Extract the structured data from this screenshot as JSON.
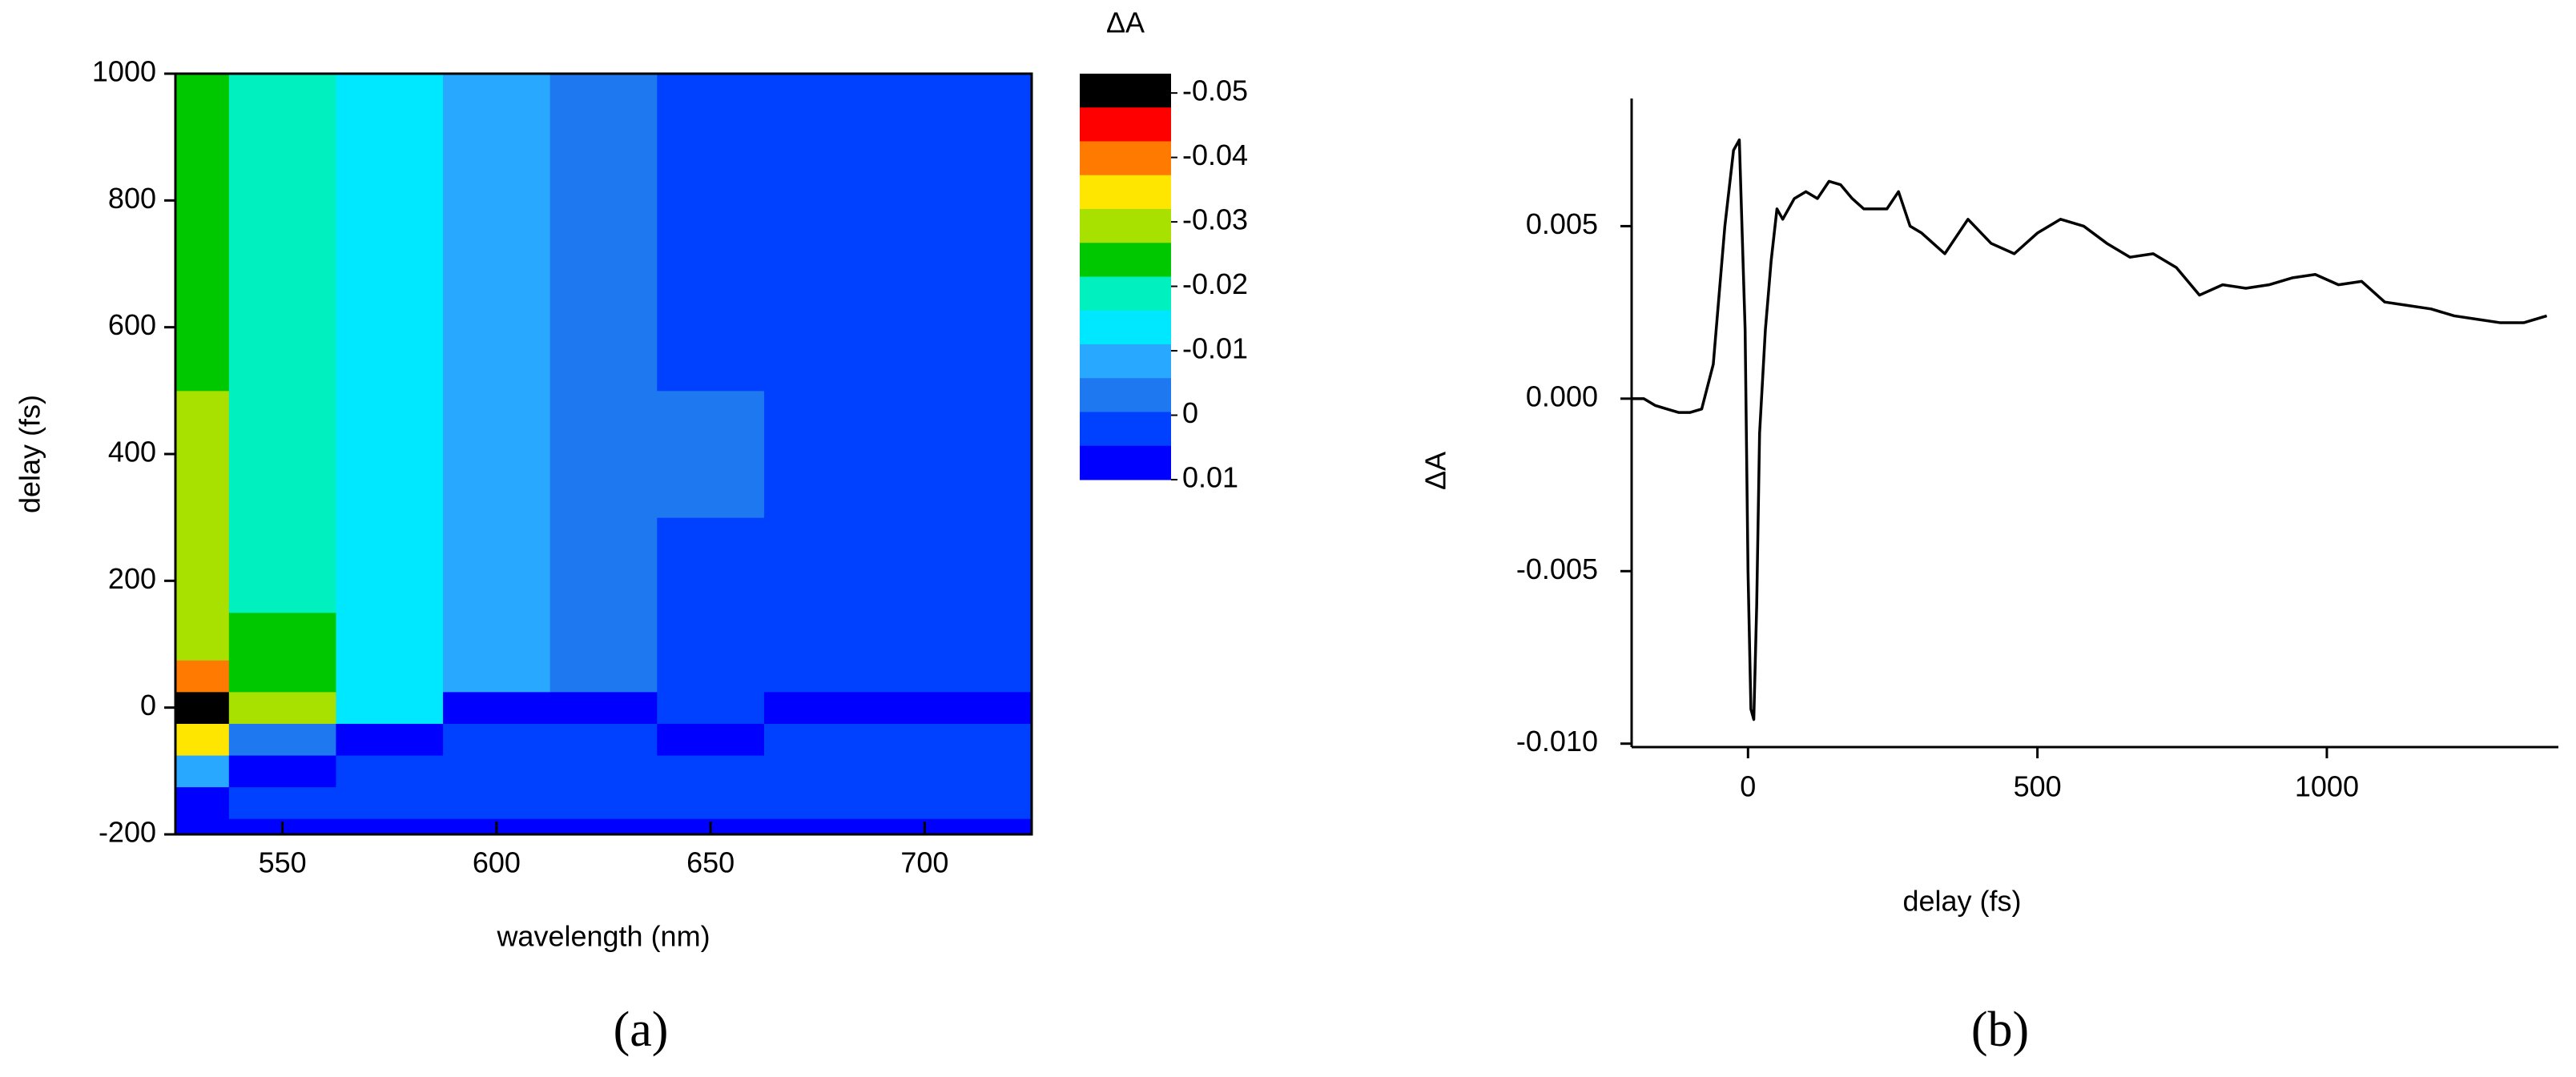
{
  "chart_data": [
    {
      "type": "heatmap",
      "caption": "(a)",
      "x_label": "wavelength (nm)",
      "y_label": "delay (fs)",
      "x": [
        525,
        550,
        575,
        600,
        625,
        650,
        675,
        700,
        725
      ],
      "y": [
        -200,
        -150,
        -100,
        -50,
        0,
        50,
        100,
        200,
        400,
        600,
        800,
        1000
      ],
      "z": [
        [
          0.008,
          0.006,
          0.005,
          0.005,
          0.005,
          0.005,
          0.005,
          0.005,
          0.005
        ],
        [
          0.006,
          0.004,
          0.003,
          0.004,
          0.004,
          0.004,
          0.004,
          0.004,
          0.004
        ],
        [
          -0.01,
          0.005,
          0.002,
          0.003,
          0.003,
          0.004,
          0.003,
          0.003,
          0.004
        ],
        [
          -0.035,
          -0.005,
          0.008,
          0.004,
          0.004,
          0.005,
          0.004,
          0.004,
          0.004
        ],
        [
          -0.05,
          -0.03,
          -0.012,
          0.006,
          0.005,
          0.004,
          0.006,
          0.008,
          0.006
        ],
        [
          -0.04,
          -0.025,
          -0.015,
          -0.008,
          -0.003,
          0.002,
          0.003,
          0.003,
          0.003
        ],
        [
          -0.032,
          -0.022,
          -0.016,
          -0.009,
          -0.004,
          0.001,
          0.003,
          0.003,
          0.003
        ],
        [
          -0.03,
          -0.021,
          -0.016,
          -0.009,
          -0.004,
          0,
          0.003,
          0.002,
          0.003
        ],
        [
          -0.028,
          -0.021,
          -0.015,
          -0.01,
          -0.004,
          -0.001,
          0.002,
          0.002,
          0.002
        ],
        [
          -0.026,
          -0.02,
          -0.015,
          -0.01,
          -0.004,
          0,
          0.002,
          0.002,
          0.002
        ],
        [
          -0.025,
          -0.02,
          -0.015,
          -0.01,
          -0.004,
          0,
          0.002,
          0.002,
          0.002
        ],
        [
          -0.024,
          -0.019,
          -0.014,
          -0.01,
          -0.004,
          0,
          0.001,
          0.002,
          0.002
        ]
      ],
      "xlim": [
        525,
        725
      ],
      "xticks": [
        550,
        600,
        650,
        700
      ],
      "ylim": [
        -200,
        1000
      ],
      "yticks": [
        -200,
        0,
        200,
        400,
        600,
        800,
        1000
      ],
      "colorbar_title": "ΔA",
      "clim": [
        -0.053,
        0.01
      ],
      "colorbar_ticks": [
        -0.05,
        -0.04,
        -0.03,
        -0.02,
        -0.01,
        0,
        0.01
      ],
      "colorscale": [
        "#000000",
        "#ff0000",
        "#ff7a00",
        "#ffe600",
        "#a8e000",
        "#00c800",
        "#00f0c0",
        "#00e8ff",
        "#28a8ff",
        "#1e78f0",
        "#0040ff",
        "#0000ff"
      ]
    },
    {
      "type": "line",
      "caption": "(b)",
      "x_label": "delay (fs)",
      "y_label": "ΔA",
      "x": [
        -200,
        -180,
        -160,
        -140,
        -120,
        -100,
        -80,
        -60,
        -40,
        -25,
        -15,
        -5,
        0,
        5,
        10,
        15,
        20,
        30,
        40,
        50,
        60,
        80,
        100,
        120,
        140,
        160,
        180,
        200,
        240,
        260,
        280,
        300,
        340,
        380,
        420,
        460,
        500,
        540,
        580,
        620,
        660,
        700,
        740,
        780,
        820,
        860,
        900,
        940,
        980,
        1020,
        1060,
        1100,
        1140,
        1180,
        1220,
        1260,
        1300,
        1340,
        1380
      ],
      "series": [
        {
          "color": "#000000",
          "values": [
            0,
            0,
            -0.0002,
            -0.0003,
            -0.0004,
            -0.0004,
            -0.0003,
            0.001,
            0.005,
            0.0072,
            0.0075,
            0.002,
            -0.005,
            -0.009,
            -0.0093,
            -0.006,
            -0.001,
            0.002,
            0.004,
            0.0055,
            0.0052,
            0.0058,
            0.006,
            0.0058,
            0.0063,
            0.0062,
            0.0058,
            0.0055,
            0.0055,
            0.006,
            0.005,
            0.0048,
            0.0042,
            0.0052,
            0.0045,
            0.0042,
            0.0048,
            0.0052,
            0.005,
            0.0045,
            0.0041,
            0.0042,
            0.0038,
            0.003,
            0.0033,
            0.0032,
            0.0033,
            0.0035,
            0.0036,
            0.0033,
            0.0034,
            0.0028,
            0.0027,
            0.0026,
            0.0024,
            0.0023,
            0.0022,
            0.0022,
            0.0024
          ]
        }
      ],
      "xlim": [
        -190,
        1400
      ],
      "xticks": [
        0,
        500,
        1000
      ],
      "ylim": [
        -0.0101,
        0.0087
      ],
      "yticks": [
        0.005,
        {
          "value": 0,
          "label": "0.000"
        },
        -0.005,
        {
          "value": -0.01,
          "label": "-0.010"
        }
      ]
    }
  ]
}
